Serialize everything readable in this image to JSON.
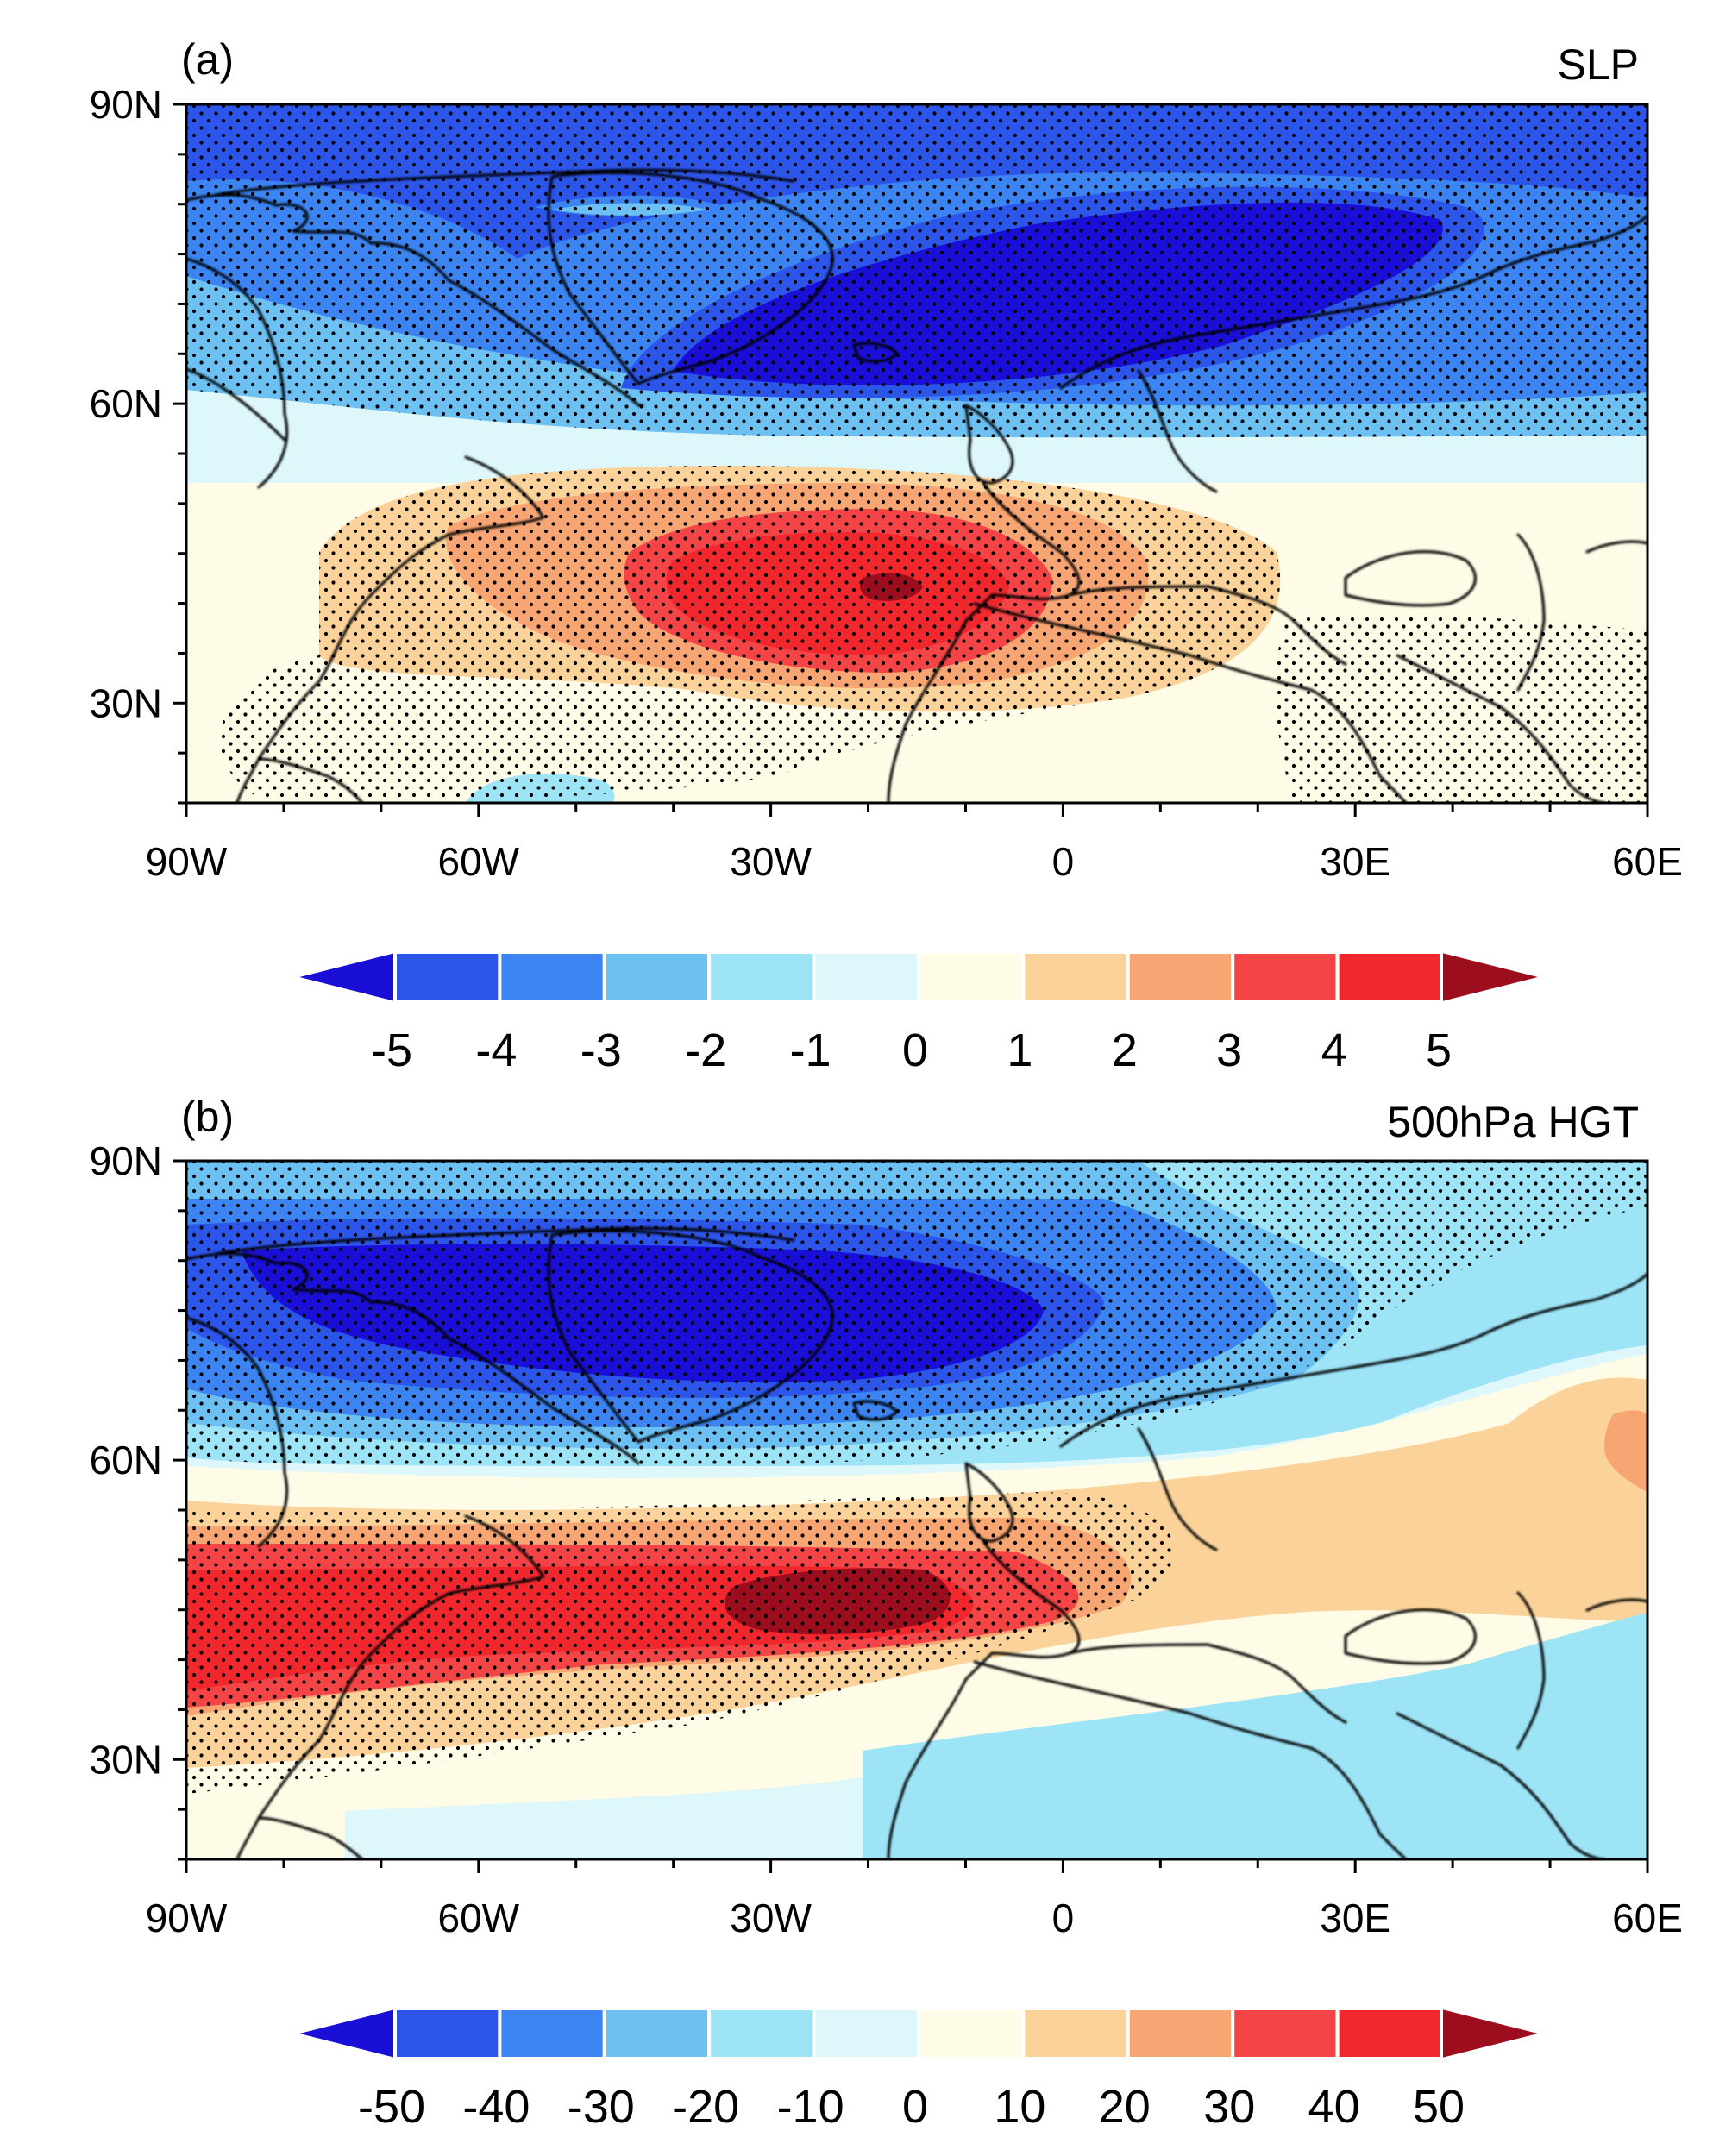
{
  "figure": {
    "colors": {
      "bins": [
        "#1a0fd6",
        "#2c55ea",
        "#3b84f2",
        "#6cc0f2",
        "#9de4f7",
        "#ddf7fb",
        "#fefbe6",
        "#fbd39a",
        "#f7a573",
        "#f44446",
        "#f0282e",
        "#9c0d1e"
      ],
      "stipple": "#000000",
      "coast": "#000000"
    },
    "axes": {
      "lon_labels": [
        "90W",
        "60W",
        "30W",
        "0",
        "30E",
        "60E"
      ],
      "lat_labels": [
        "90N",
        "60N",
        "30N"
      ]
    },
    "panels": [
      {
        "tag": "(a)",
        "title": "SLP",
        "colorbar_labels": [
          "-5",
          "-4",
          "-3",
          "-2",
          "-1",
          "0",
          "1",
          "2",
          "3",
          "4",
          "5"
        ]
      },
      {
        "tag": "(b)",
        "title": "500hPa HGT",
        "colorbar_labels": [
          "-50",
          "-40",
          "-30",
          "-20",
          "-10",
          "0",
          "10",
          "20",
          "30",
          "40",
          "50"
        ]
      }
    ]
  },
  "chart_data": [
    {
      "type": "heatmap",
      "title": "SLP",
      "panel": "(a)",
      "x_range": [
        -90,
        60
      ],
      "y_range": [
        20,
        90
      ],
      "x_ticks": [
        "90W",
        "60W",
        "30W",
        "0",
        "30E",
        "60E"
      ],
      "y_ticks": [
        "90N",
        "60N",
        "30N"
      ],
      "levels": [
        -5,
        -4,
        -3,
        -2,
        -1,
        0,
        1,
        2,
        3,
        4,
        5
      ],
      "features": [
        {
          "kind": "low",
          "lon": -5,
          "lat": 72,
          "value": -5.5
        },
        {
          "kind": "high",
          "lon": -17,
          "lat": 42,
          "value": 5.2
        }
      ]
    },
    {
      "type": "heatmap",
      "title": "500hPa HGT",
      "panel": "(b)",
      "x_range": [
        -90,
        60
      ],
      "y_range": [
        20,
        90
      ],
      "x_ticks": [
        "90W",
        "60W",
        "30W",
        "0",
        "30E",
        "60E"
      ],
      "y_ticks": [
        "90N",
        "60N",
        "30N"
      ],
      "levels": [
        -50,
        -40,
        -30,
        -20,
        -10,
        0,
        10,
        20,
        30,
        40,
        50
      ],
      "features": [
        {
          "kind": "low",
          "lon": -40,
          "lat": 70,
          "value": -55
        },
        {
          "kind": "high",
          "lon": -20,
          "lat": 43,
          "value": 52
        },
        {
          "kind": "high",
          "lon": 60,
          "lat": 62,
          "value": 15
        }
      ]
    }
  ]
}
